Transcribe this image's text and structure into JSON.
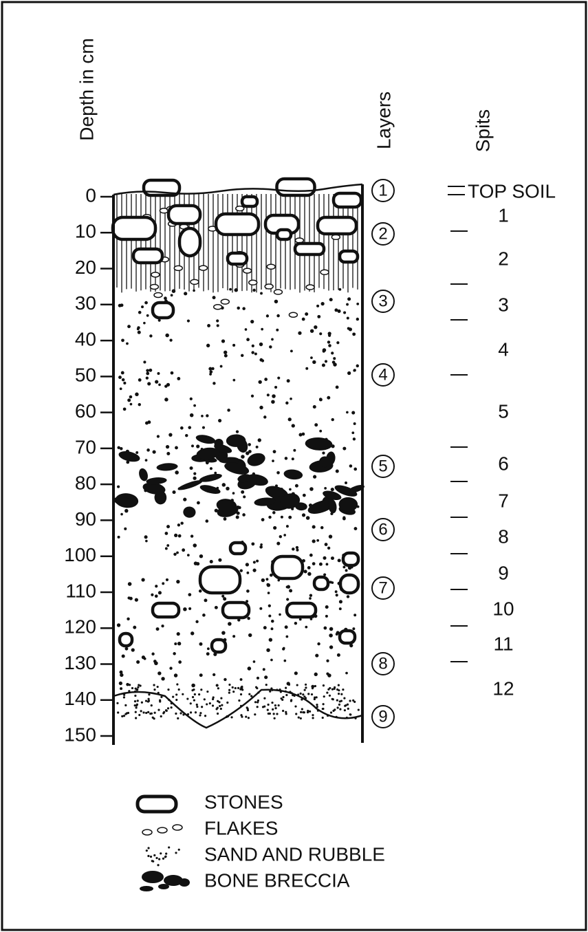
{
  "axis_labels": {
    "depth": "Depth in cm",
    "layers": "Layers",
    "spits": "Spits"
  },
  "depth_ticks": [
    0,
    10,
    20,
    30,
    40,
    50,
    60,
    70,
    80,
    90,
    100,
    110,
    120,
    130,
    140,
    150
  ],
  "layers": [
    "1",
    "2",
    "3",
    "4",
    "5",
    "6",
    "7",
    "8",
    "9"
  ],
  "spits": [
    "TOP SOIL",
    "1",
    "2",
    "3",
    "4",
    "5",
    "6",
    "7",
    "8",
    "9",
    "10",
    "11",
    "12"
  ],
  "legend": [
    {
      "label": "STONES"
    },
    {
      "label": "FLAKES"
    },
    {
      "label": "SAND AND RUBBLE"
    },
    {
      "label": "BONE BRECCIA"
    }
  ]
}
